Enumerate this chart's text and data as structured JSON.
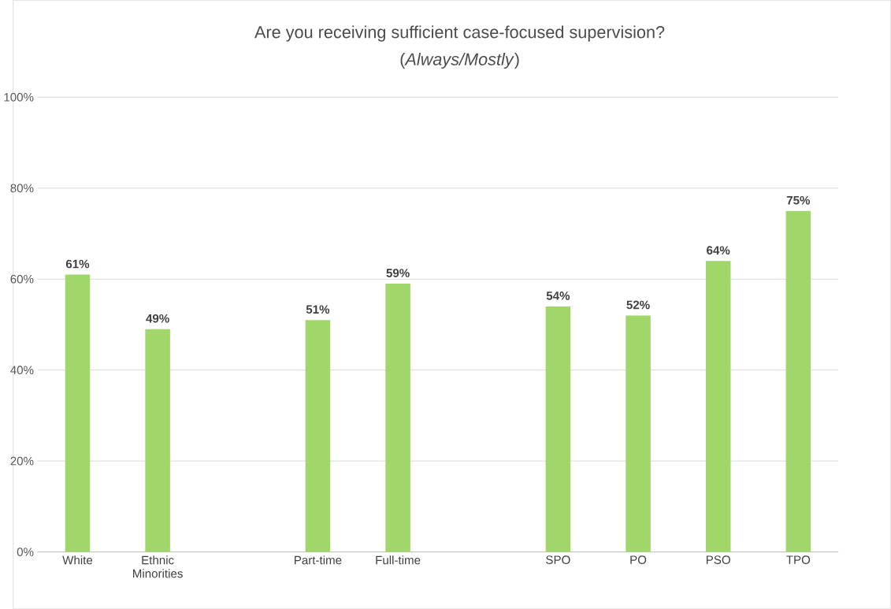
{
  "chart_data": {
    "type": "bar",
    "title": "Are you receiving sufficient case-focused supervision?",
    "subtitle": "(*Always/Mostly*)",
    "categories": [
      "White",
      "Ethnic Minorities",
      null,
      "Part-time",
      "Full-time",
      null,
      "SPO",
      "PO",
      "PSO",
      "TPO"
    ],
    "values": [
      61,
      49,
      null,
      51,
      59,
      null,
      54,
      52,
      64,
      75
    ],
    "value_labels": [
      "61%",
      "49%",
      null,
      "51%",
      "59%",
      null,
      "54%",
      "52%",
      "64%",
      "75%"
    ],
    "color": "#a1d66a",
    "ylim": [
      0,
      100
    ],
    "yticks": [
      {
        "value": 0,
        "label": "0%"
      },
      {
        "value": 20,
        "label": "20%"
      },
      {
        "value": 40,
        "label": "40%"
      },
      {
        "value": 60,
        "label": "60%"
      },
      {
        "value": 80,
        "label": "80%"
      },
      {
        "value": 100,
        "label": "100%"
      }
    ],
    "grid": "y"
  }
}
